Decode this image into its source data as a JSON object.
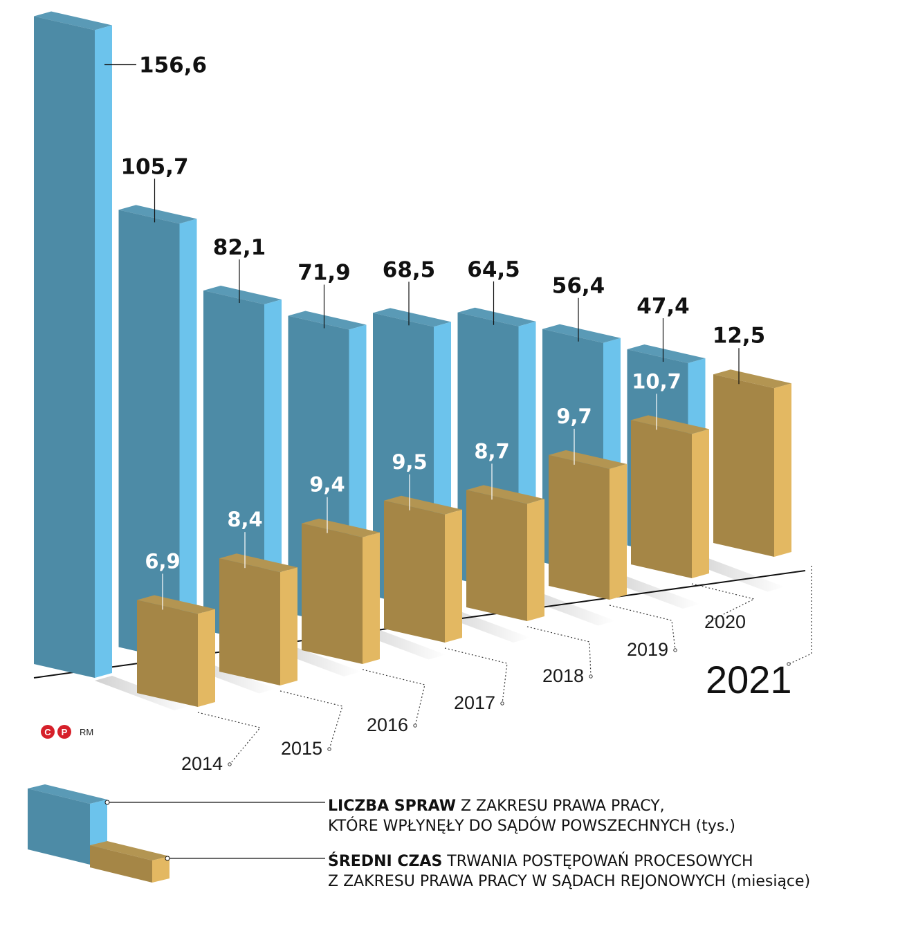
{
  "chart_data": {
    "type": "bar",
    "style": "3d-grouped",
    "categories": [
      "2014",
      "2015",
      "2016",
      "2017",
      "2018",
      "2019",
      "2020",
      "2021"
    ],
    "series": [
      {
        "name": "LICZBA SPRAW Z ZAKRESU PRAWA PRACY, KTÓRE WPŁYNĘŁY DO SĄDÓW POWSZECHNYCH (tys.)",
        "values": [
          156.6,
          105.7,
          82.1,
          71.9,
          68.5,
          64.5,
          56.4,
          47.4
        ],
        "labels": [
          "156,6",
          "105,7",
          "82,1",
          "71,9",
          "68,5",
          "64,5",
          "56,4",
          "47,4"
        ],
        "color": "#4d8ba6",
        "side_color": "#6cc3ec"
      },
      {
        "name": "ŚREDNI CZAS TRWANIA POSTĘPOWAŃ PROCESOWYCH Z ZAKRESU PRAWA PRACY W SĄDACH REJONOWYCH (miesiące)",
        "values": [
          6.9,
          8.4,
          9.4,
          9.5,
          8.7,
          9.7,
          10.7,
          12.5
        ],
        "labels": [
          "6,9",
          "8,4",
          "9,4",
          "9,5",
          "8,7",
          "9,7",
          "10,7",
          "12,5"
        ],
        "color": "#a58646",
        "side_color": "#e3b862"
      }
    ],
    "legend": {
      "blue_bold": "LICZBA SPRAW",
      "blue_line1_rest": " Z ZAKRESU PRAWA PRACY,",
      "blue_line2": "KTÓRE WPŁYNĘŁY DO SĄDÓW POWSZECHNYCH (tys.)",
      "gold_bold": "ŚREDNI CZAS",
      "gold_line1_rest": " TRWANIA POSTĘPOWAŃ PROCESOWYCH",
      "gold_line2": "Z ZAKRESU PRAWA PRACY W SĄDACH REJONOWYCH (miesiące)"
    },
    "credit": {
      "logo_c": "C",
      "logo_p": "P",
      "author": "RM"
    }
  }
}
